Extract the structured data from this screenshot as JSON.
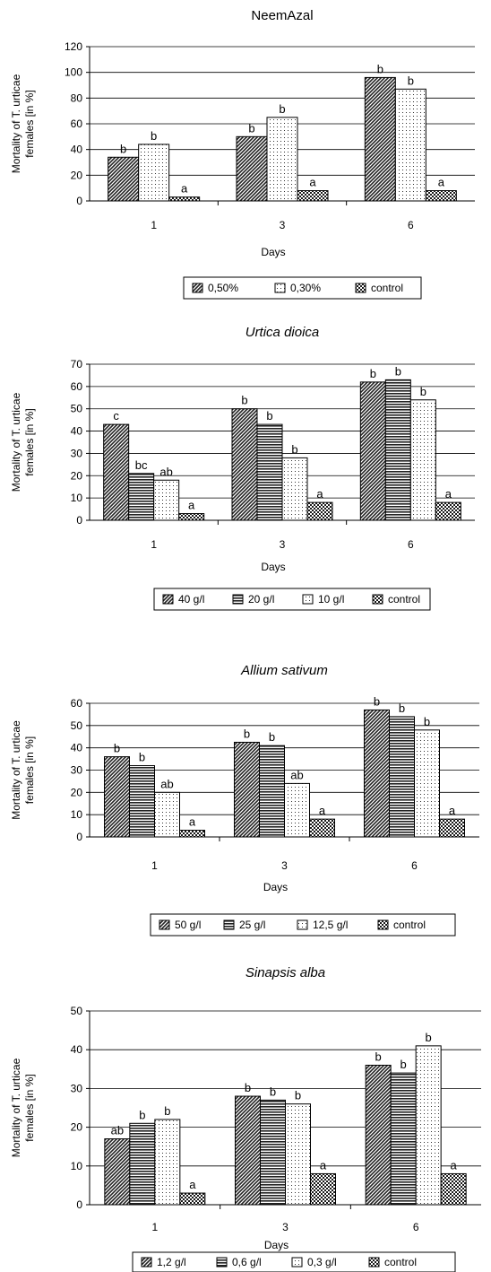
{
  "chart_data": [
    {
      "type": "bar",
      "title": "NeemAzal",
      "title_style": "normal",
      "xlabel": "Days",
      "ylabel_lines": [
        "Mortality of T. urticae",
        "females [in %]"
      ],
      "ylim": [
        0,
        120
      ],
      "ytick_step": 20,
      "grid": true,
      "legend_position": "bottom",
      "categories": [
        "1",
        "3",
        "6"
      ],
      "series": [
        {
          "name": "0,50%",
          "pattern": "diag",
          "values": [
            34,
            50,
            96
          ],
          "labels": [
            "b",
            "b",
            "b"
          ]
        },
        {
          "name": "0,30%",
          "pattern": "dots",
          "values": [
            44,
            65,
            87
          ],
          "labels": [
            "b",
            "b",
            "b"
          ]
        },
        {
          "name": "control",
          "pattern": "checker",
          "values": [
            3,
            8,
            8
          ],
          "labels": [
            "a",
            "a",
            "a"
          ]
        }
      ]
    },
    {
      "type": "bar",
      "title": "Urtica dioica",
      "title_style": "italic",
      "xlabel": "Days",
      "ylabel_lines": [
        "Mortality of T. urticae",
        "females [in %]"
      ],
      "ylim": [
        0,
        70
      ],
      "ytick_step": 10,
      "grid": true,
      "legend_position": "bottom",
      "categories": [
        "1",
        "3",
        "6"
      ],
      "series": [
        {
          "name": "40 g/l",
          "pattern": "diag",
          "values": [
            43,
            50,
            62
          ],
          "labels": [
            "c",
            "b",
            "b"
          ]
        },
        {
          "name": "20 g/l",
          "pattern": "hlines",
          "values": [
            21,
            43,
            63
          ],
          "labels": [
            "bc",
            "b",
            "b"
          ]
        },
        {
          "name": "10 g/l",
          "pattern": "dots",
          "values": [
            18,
            28,
            54
          ],
          "labels": [
            "ab",
            "b",
            "b"
          ]
        },
        {
          "name": "control",
          "pattern": "checker",
          "values": [
            3,
            8,
            8
          ],
          "labels": [
            "a",
            "a",
            "a"
          ]
        }
      ]
    },
    {
      "type": "bar",
      "title": "Allium sativum",
      "title_style": "italic",
      "xlabel": "Days",
      "ylabel_lines": [
        "Mortality of T. urticae",
        "females [in %]"
      ],
      "ylim": [
        0,
        60
      ],
      "ytick_step": 10,
      "grid": true,
      "legend_position": "bottom",
      "categories": [
        "1",
        "3",
        "6"
      ],
      "series": [
        {
          "name": "50 g/l",
          "pattern": "diag",
          "values": [
            36,
            42.5,
            57
          ],
          "labels": [
            "b",
            "b",
            "b"
          ]
        },
        {
          "name": "25 g/l",
          "pattern": "hlines",
          "values": [
            32,
            41,
            54
          ],
          "labels": [
            "b",
            "b",
            "b"
          ]
        },
        {
          "name": "12,5 g/l",
          "pattern": "dots",
          "values": [
            20,
            24,
            48
          ],
          "labels": [
            "ab",
            "ab",
            "b"
          ]
        },
        {
          "name": "control",
          "pattern": "checker",
          "values": [
            3,
            8,
            8
          ],
          "labels": [
            "a",
            "a",
            "a"
          ]
        }
      ]
    },
    {
      "type": "bar",
      "title": "Sinapsis alba",
      "title_style": "italic",
      "xlabel": "Days",
      "ylabel_lines": [
        "Mortality of T. urticae",
        "females [in %]"
      ],
      "ylim": [
        0,
        50
      ],
      "ytick_step": 10,
      "grid": true,
      "legend_position": "bottom",
      "categories": [
        "1",
        "3",
        "6"
      ],
      "series": [
        {
          "name": "1,2 g/l",
          "pattern": "diag",
          "values": [
            17,
            28,
            36
          ],
          "labels": [
            "ab",
            "b",
            "b"
          ]
        },
        {
          "name": "0,6 g/l",
          "pattern": "hlines",
          "values": [
            21,
            27,
            34
          ],
          "labels": [
            "b",
            "b",
            "b"
          ]
        },
        {
          "name": "0,3 g/l",
          "pattern": "dots",
          "values": [
            22,
            26,
            41
          ],
          "labels": [
            "b",
            "b",
            "b"
          ]
        },
        {
          "name": "control",
          "pattern": "checker",
          "values": [
            3,
            8,
            8
          ],
          "labels": [
            "a",
            "a",
            "a"
          ]
        }
      ]
    }
  ]
}
